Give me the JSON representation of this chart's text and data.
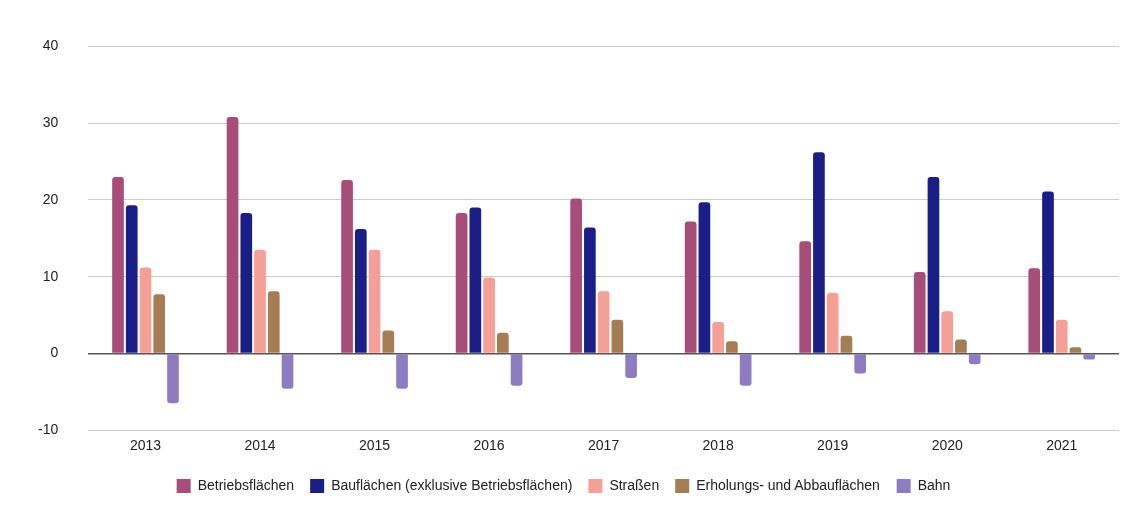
{
  "chart_data": {
    "type": "bar",
    "categories": [
      "2013",
      "2014",
      "2015",
      "2016",
      "2017",
      "2018",
      "2019",
      "2020",
      "2021"
    ],
    "series": [
      {
        "name": "Betriebsflächen",
        "color": "#a84c7a",
        "values": [
          23.0,
          30.8,
          22.6,
          18.3,
          20.2,
          17.2,
          14.6,
          10.6,
          11.1
        ]
      },
      {
        "name": "Bauflächen (exklusive Betriebsflächen)",
        "color": "#1a1f87",
        "values": [
          19.3,
          18.3,
          16.2,
          19.0,
          16.4,
          19.7,
          26.2,
          23.0,
          21.1
        ]
      },
      {
        "name": "Straßen",
        "color": "#f4a097",
        "values": [
          11.2,
          13.5,
          13.5,
          9.9,
          8.1,
          4.1,
          7.9,
          5.5,
          4.4
        ]
      },
      {
        "name": "Erholungs- und Abbauflächen",
        "color": "#a67c52",
        "values": [
          7.7,
          8.1,
          3.0,
          2.7,
          4.4,
          1.6,
          2.3,
          1.8,
          0.8
        ]
      },
      {
        "name": "Bahn",
        "color": "#8e7cc3",
        "values": [
          -6.5,
          -4.6,
          -4.6,
          -4.2,
          -3.2,
          -4.2,
          -2.6,
          -1.4,
          -0.8
        ]
      }
    ],
    "ylim": [
      -10,
      40
    ],
    "yticks": [
      -10,
      0,
      10,
      20,
      30,
      40
    ],
    "grid": "y",
    "legend": "bottom"
  }
}
